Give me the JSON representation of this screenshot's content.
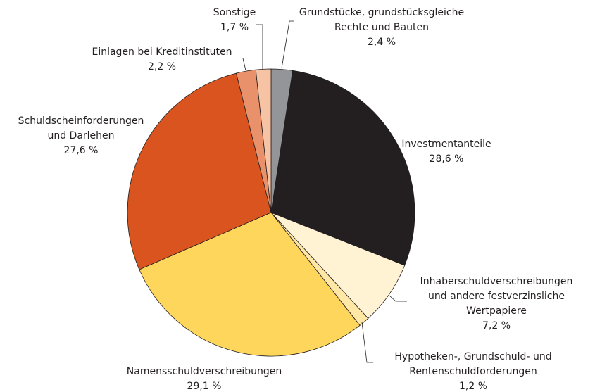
{
  "chart_data": {
    "type": "pie",
    "categories": [
      [
        "Grundstücke, grundstücksgleiche",
        "Rechte und Bauten"
      ],
      [
        "Investmentanteile"
      ],
      [
        "Inhaberschuldverschreibungen",
        "und andere festverzinsliche",
        "Wertpapiere"
      ],
      [
        "Hypotheken-, Grundschuld- und",
        "Rentenschuldforderungen"
      ],
      [
        "Namensschuldverschreibungen"
      ],
      [
        "Schuldscheinforderungen",
        "und Darlehen"
      ],
      [
        "Einlagen bei Kreditinstituten"
      ],
      [
        "Sonstige"
      ]
    ],
    "values": [
      2.4,
      28.6,
      7.2,
      1.2,
      29.1,
      27.6,
      2.2,
      1.7
    ],
    "value_labels": [
      "2,4 %",
      "28,6 %",
      "7,2 %",
      "1,2 %",
      "29,1 %",
      "27,6 %",
      "2,2 %",
      "1,7 %"
    ],
    "colors": [
      "#939598",
      "#231f20",
      "#fff3d4",
      "#ffe7a6",
      "#ffd65c",
      "#d9541e",
      "#e8916a",
      "#f6c3a5"
    ]
  }
}
